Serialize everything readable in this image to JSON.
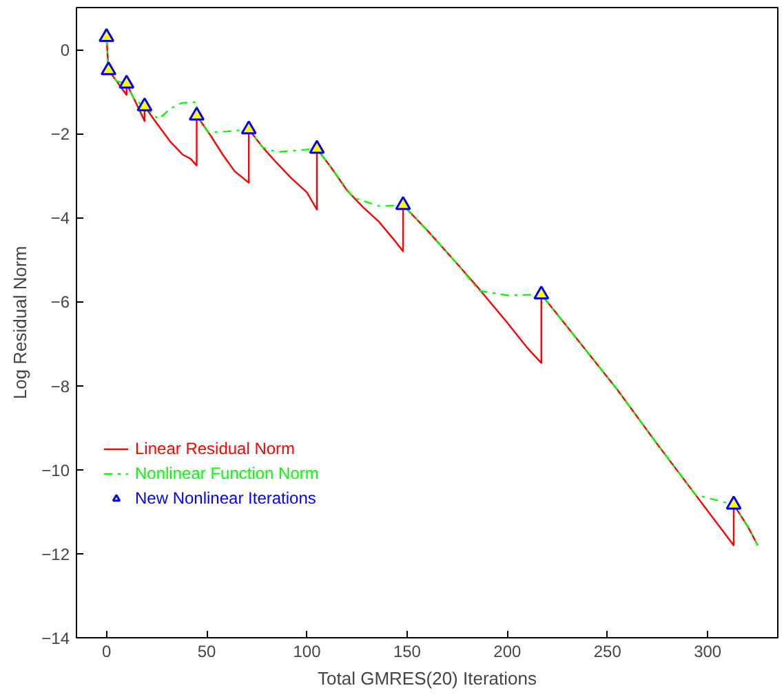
{
  "chart_data": {
    "type": "line",
    "xlabel": "Total GMRES(20) Iterations",
    "ylabel": "Log Residual Norm",
    "xlim": [
      -15,
      335
    ],
    "ylim": [
      -14,
      1
    ],
    "xticks": [
      0,
      50,
      100,
      150,
      200,
      250,
      300
    ],
    "yticks": [
      -14,
      -12,
      -10,
      -8,
      -6,
      -4,
      -2,
      0
    ],
    "grid": false,
    "legend": "bottom left",
    "series": [
      {
        "name": "Linear Residual Norm",
        "color": "#ff0000",
        "line_style": "solid",
        "marker": "none",
        "x": [
          0,
          1,
          5,
          10,
          10,
          14,
          19,
          19,
          25,
          32,
          38,
          42,
          45,
          45,
          52,
          58,
          64,
          68,
          71,
          71,
          78,
          85,
          92,
          100,
          105,
          105,
          112,
          120,
          128,
          136,
          143,
          148,
          148,
          160,
          175,
          186,
          200,
          210,
          217,
          217,
          235,
          255,
          275,
          294,
          313,
          313,
          320,
          325
        ],
        "values": [
          0.3,
          -0.49,
          -0.75,
          -1.08,
          -0.81,
          -1.2,
          -1.7,
          -1.35,
          -1.75,
          -2.2,
          -2.5,
          -2.6,
          -2.76,
          -1.57,
          -2.05,
          -2.5,
          -2.9,
          -3.05,
          -3.17,
          -1.9,
          -2.33,
          -2.7,
          -3.05,
          -3.4,
          -3.81,
          -2.36,
          -2.8,
          -3.35,
          -3.75,
          -4.1,
          -4.5,
          -4.8,
          -3.7,
          -4.3,
          -5.1,
          -5.7,
          -6.5,
          -7.1,
          -7.46,
          -5.83,
          -6.9,
          -8.1,
          -9.4,
          -10.6,
          -11.8,
          -10.83,
          -11.35,
          -11.8
        ]
      },
      {
        "name": "Nonlinear Function Norm",
        "color": "#00ff00",
        "line_style": "dashdot",
        "marker": "none",
        "x": [
          0,
          1,
          5,
          10,
          14,
          19,
          26,
          32,
          37.6,
          45,
          45,
          51,
          60,
          71,
          78,
          85,
          95,
          105,
          112,
          123,
          136.5,
          148,
          160,
          175,
          186,
          200,
          217,
          235,
          255,
          275,
          294,
          313,
          320,
          325
        ],
        "values": [
          0.3,
          -0.49,
          -0.75,
          -0.81,
          -1.2,
          -1.35,
          -1.66,
          -1.4,
          -1.27,
          -1.25,
          -1.57,
          -1.97,
          -1.95,
          -1.9,
          -2.33,
          -2.44,
          -2.4,
          -2.36,
          -2.8,
          -3.52,
          -3.73,
          -3.7,
          -4.3,
          -5.1,
          -5.74,
          -5.85,
          -5.83,
          -6.9,
          -8.1,
          -9.4,
          -10.6,
          -10.83,
          -11.35,
          -11.8
        ]
      },
      {
        "name": "New Nonlinear Iterations",
        "type": "scatter",
        "color": "#0000ff",
        "marker": "triangle",
        "x": [
          0,
          1,
          10,
          19,
          45,
          71,
          105,
          148,
          217,
          313
        ],
        "values": [
          0.3,
          -0.49,
          -0.81,
          -1.35,
          -1.57,
          -1.9,
          -2.36,
          -3.7,
          -5.83,
          -10.83
        ]
      }
    ]
  }
}
